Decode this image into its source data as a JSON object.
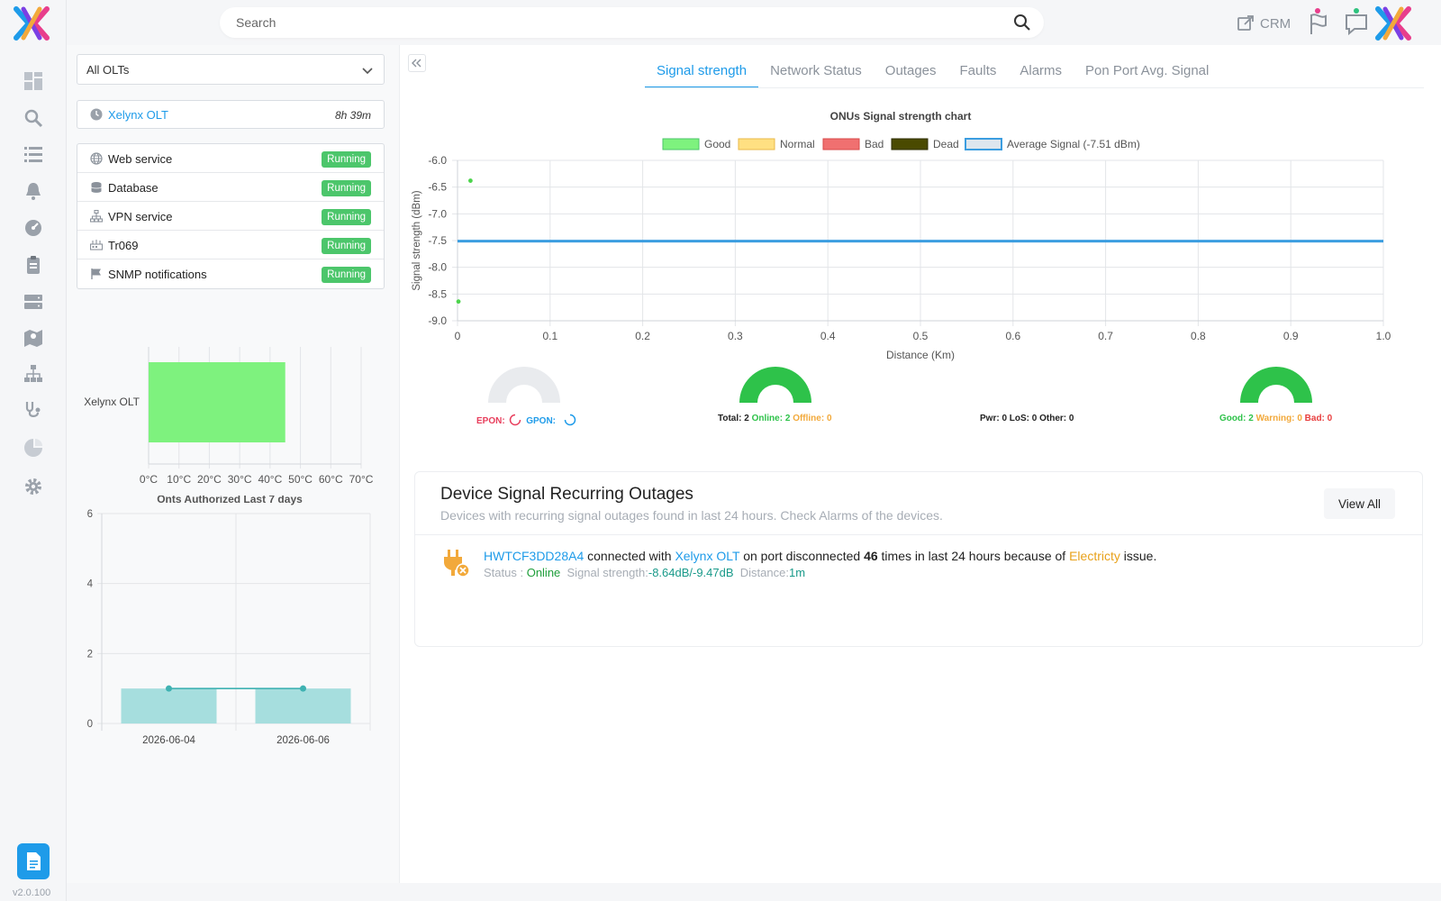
{
  "version": "v2.0.100",
  "search": {
    "placeholder": "Search"
  },
  "topbar": {
    "crm_label": "CRM"
  },
  "sidebar_icons": [
    "dashboard-icon",
    "search-icon",
    "list-icon",
    "bell-icon",
    "gauge-icon",
    "clipboard-icon",
    "server-icon",
    "map-icon",
    "network-icon",
    "stethoscope-icon",
    "pie-chart-icon",
    "gear-icon"
  ],
  "olt_select": {
    "value": "All OLTs"
  },
  "olt_card": {
    "name": "Xelynx OLT",
    "uptime": "8h 39m"
  },
  "services": [
    {
      "label": "Web service",
      "status": "Running",
      "icon": "globe-icon"
    },
    {
      "label": "Database",
      "status": "Running",
      "icon": "database-icon"
    },
    {
      "label": "VPN service",
      "status": "Running",
      "icon": "sitemap-icon"
    },
    {
      "label": "Tr069",
      "status": "Running",
      "icon": "router-icon"
    },
    {
      "label": "SNMP notifications",
      "status": "Running",
      "icon": "flag-icon"
    }
  ],
  "tabs": [
    "Signal strength",
    "Network Status",
    "Outages",
    "Faults",
    "Alarms",
    "Pon Port Avg. Signal"
  ],
  "active_tab": 0,
  "colors": {
    "accent": "#1e9be9",
    "good": "#7ef27e",
    "normal": "#ffe082",
    "bad": "#f07070",
    "dead": "#4a4a00",
    "avg": "#3b9de0",
    "running": "#4cc66b",
    "teal": "#7fd3d3"
  },
  "chart_data": [
    {
      "type": "bar",
      "orientation": "horizontal",
      "categories": [
        "Xelynx OLT"
      ],
      "values": [
        45
      ],
      "xticks": [
        "0°C",
        "10°C",
        "20°C",
        "30°C",
        "40°C",
        "50°C",
        "60°C",
        "70°C"
      ],
      "xlim": [
        0,
        70
      ]
    },
    {
      "type": "bar",
      "title": "Onts Authorized Last 7 days",
      "categories": [
        "2026-06-04",
        "2026-06-06"
      ],
      "values": [
        1,
        1
      ],
      "line_values": [
        1,
        1
      ],
      "ylim": [
        0,
        6
      ],
      "yticks": [
        0,
        2,
        4,
        6
      ]
    },
    {
      "type": "scatter",
      "title": "ONUs Signal strength chart",
      "xlabel": "Distance (Km)",
      "ylabel": "Signal strength (dBm)",
      "xlim": [
        0,
        1.0
      ],
      "ylim": [
        -9.0,
        -6.0
      ],
      "xticks": [
        "0",
        "0.1",
        "0.2",
        "0.3",
        "0.4",
        "0.5",
        "0.6",
        "0.7",
        "0.8",
        "0.9",
        "1.0"
      ],
      "yticks": [
        "-6.0",
        "-6.5",
        "-7.0",
        "-7.5",
        "-8.0",
        "-8.5",
        "-9.0"
      ],
      "legend": [
        "Good",
        "Normal",
        "Bad",
        "Dead",
        "Average Signal (-7.51 dBm)"
      ],
      "points": [
        {
          "x": 0.014,
          "y": -6.38
        },
        {
          "x": 0.001,
          "y": -8.64
        }
      ],
      "average": -7.51
    }
  ],
  "gauges": {
    "pon": {
      "epon": "EPON:",
      "gpon": "GPON:"
    },
    "status": {
      "total_label": "Total:",
      "total": "2",
      "online_label": "Online:",
      "online": "2",
      "offline_label": "Offline:",
      "offline": "0"
    },
    "faults": {
      "text": "Pwr: 0 LoS: 0 Other: 0"
    },
    "quality": {
      "good_label": "Good:",
      "good": "2",
      "warning_label": "Warning:",
      "warning": "0",
      "bad_label": "Bad:",
      "bad": "0"
    }
  },
  "outages": {
    "title": "Device Signal Recurring Outages",
    "subtitle": "Devices with recurring signal outages found in last 24 hours. Check Alarms of the devices.",
    "view_all": "View All",
    "rows": [
      {
        "device": "HWTCF3DD28A4",
        "connected_with": "connected with",
        "olt": "Xelynx OLT",
        "port_text": "on port disconnected",
        "count": "46",
        "times_text": "times in last 24 hours because of",
        "cause": "Electricty",
        "issue_text": "issue.",
        "status_label": "Status :",
        "status": "Online",
        "signal_label": "Signal strength:",
        "signal": "-8.64dB/-9.47dB",
        "distance_label": "Distance:",
        "distance": "1m"
      }
    ]
  }
}
